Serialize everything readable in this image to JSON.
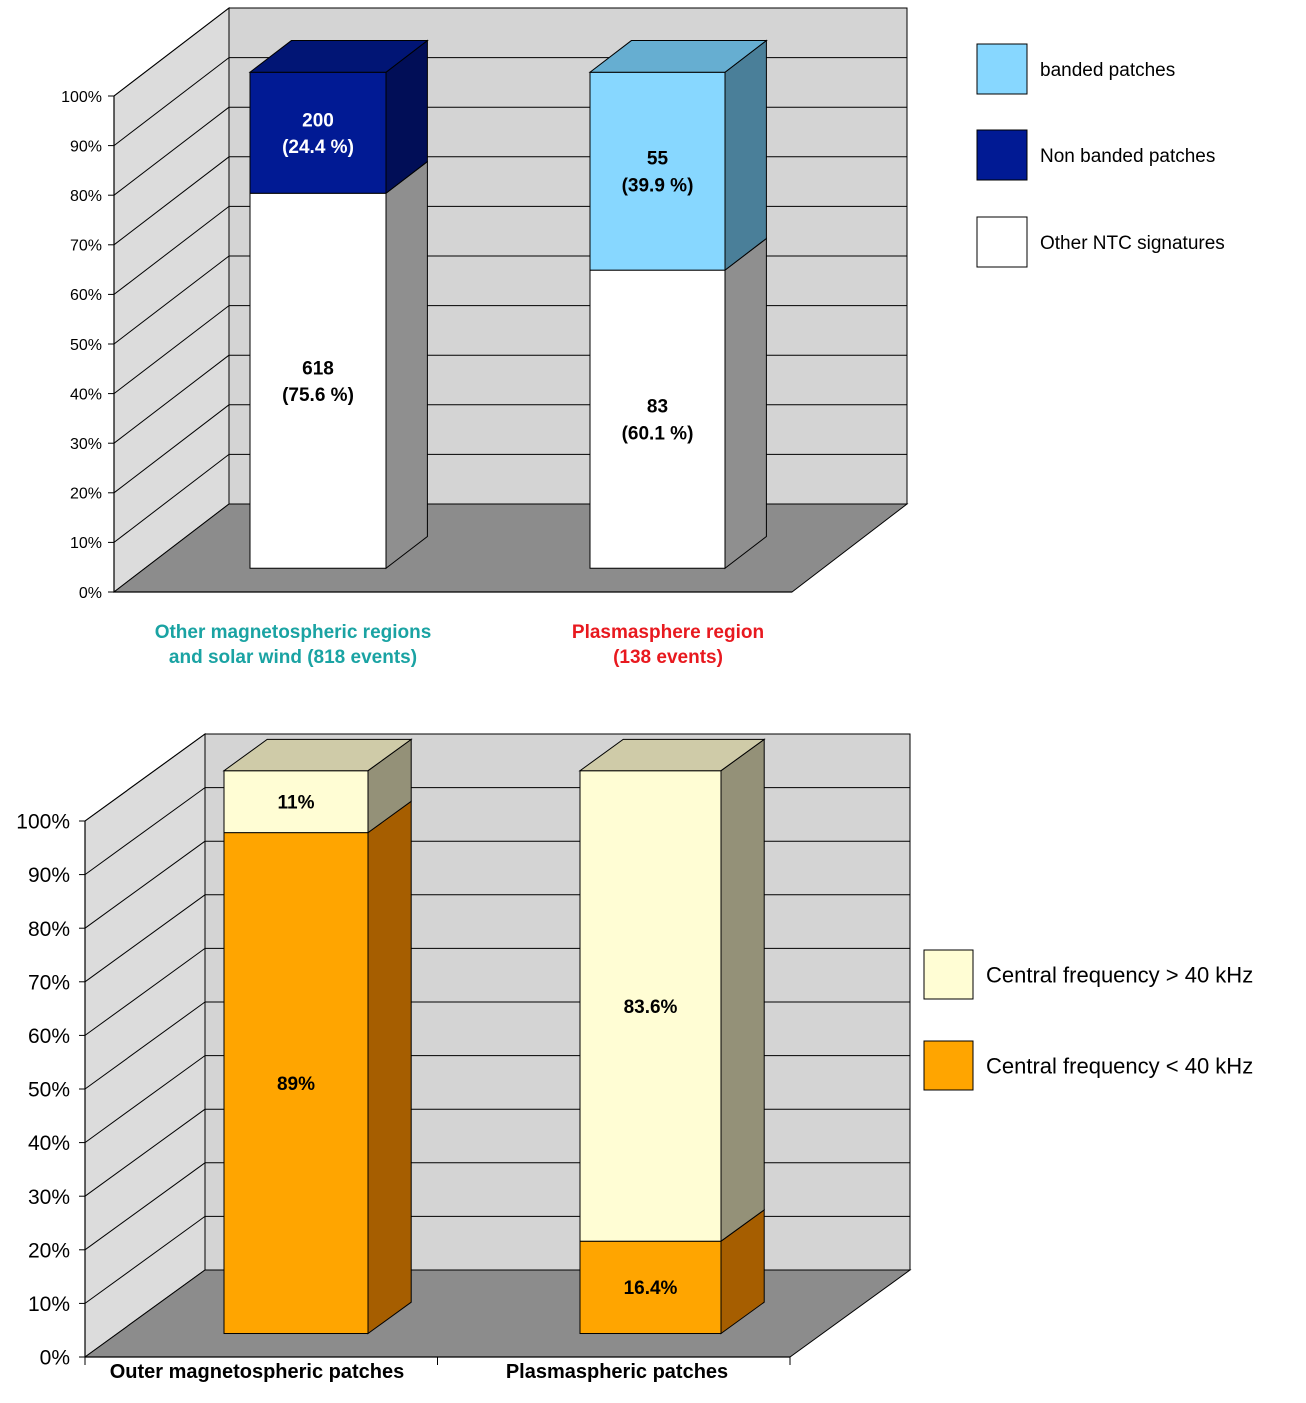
{
  "colors": {
    "wall": "#d4d4d4",
    "side_wall": "#dcdcdc",
    "floor": "#8c8c8c",
    "grid": "#000000"
  },
  "chart_data": [
    {
      "type": "bar",
      "stacked": true,
      "three_d": true,
      "title": "",
      "xlabel": "",
      "ylabel": "",
      "y_axis": {
        "min": 0,
        "max": 100,
        "step": 10,
        "unit": "%"
      },
      "y_ticks": [
        "0%",
        "10%",
        "20%",
        "30%",
        "40%",
        "50%",
        "60%",
        "70%",
        "80%",
        "90%",
        "100%"
      ],
      "grid": true,
      "legend_position": "right",
      "categories": [
        {
          "label_lines": [
            "Other magnetospheric regions",
            "and solar wind (818 events)"
          ],
          "color": "#1aa3a3"
        },
        {
          "label_lines": [
            "Plasmasphere region",
            "(138 events)"
          ],
          "color": "#e8191f"
        }
      ],
      "series": [
        {
          "name": "Other NTC signatures",
          "color": "#ffffff",
          "side_color": "#8f8f8f",
          "top_color": "#ffffff",
          "label_color": "#000000",
          "values": [
            75.6,
            60.1
          ],
          "label_lines": [
            [
              "618",
              "(75.6 %)"
            ],
            [
              "83",
              "(60.1 %)"
            ]
          ]
        },
        {
          "name": "Non banded patches",
          "color": "#011a94",
          "side_color": "#010e57",
          "top_color": "#011575",
          "label_color": "#ffffff",
          "values": [
            24.4,
            null
          ],
          "label_lines": [
            [
              "200",
              "(24.4 %)"
            ],
            []
          ]
        },
        {
          "name": "banded patches",
          "color": "#87d7ff",
          "side_color": "#4a7f99",
          "top_color": "#66aed1",
          "label_color": "#000000",
          "values": [
            null,
            39.9
          ],
          "label_lines": [
            [],
            [
              "55",
              "(39.9 %)"
            ]
          ]
        }
      ],
      "legend": [
        "banded patches",
        "Non banded patches",
        "Other NTC signatures"
      ]
    },
    {
      "type": "bar",
      "stacked": true,
      "three_d": true,
      "title": "",
      "xlabel": "",
      "ylabel": "",
      "y_axis": {
        "min": 0,
        "max": 100,
        "step": 10,
        "unit": "%"
      },
      "y_ticks": [
        "0%",
        "10%",
        "20%",
        "30%",
        "40%",
        "50%",
        "60%",
        "70%",
        "80%",
        "90%",
        "100%"
      ],
      "grid": true,
      "legend_position": "right",
      "categories": [
        {
          "label_lines": [
            "Outer magnetospheric patches"
          ],
          "color": "#000000"
        },
        {
          "label_lines": [
            "Plasmaspheric patches"
          ],
          "color": "#000000"
        }
      ],
      "series": [
        {
          "name": "Central frequency < 40 kHz",
          "color": "#ffa500",
          "side_color": "#a65e00",
          "top_color": "#ffa500",
          "label_color": "#000000",
          "values": [
            89,
            16.4
          ],
          "label_lines": [
            [
              "89%"
            ],
            [
              "16.4%"
            ]
          ]
        },
        {
          "name": "Central frequency > 40 kHz",
          "color": "#fffdd4",
          "side_color": "#949178",
          "top_color": "#cfcba8",
          "label_color": "#000000",
          "values": [
            11,
            83.6
          ],
          "label_lines": [
            [
              "11%"
            ],
            [
              "83.6%"
            ]
          ]
        }
      ],
      "legend": [
        "Central frequency > 40 kHz",
        "Central frequency < 40 kHz"
      ]
    }
  ]
}
